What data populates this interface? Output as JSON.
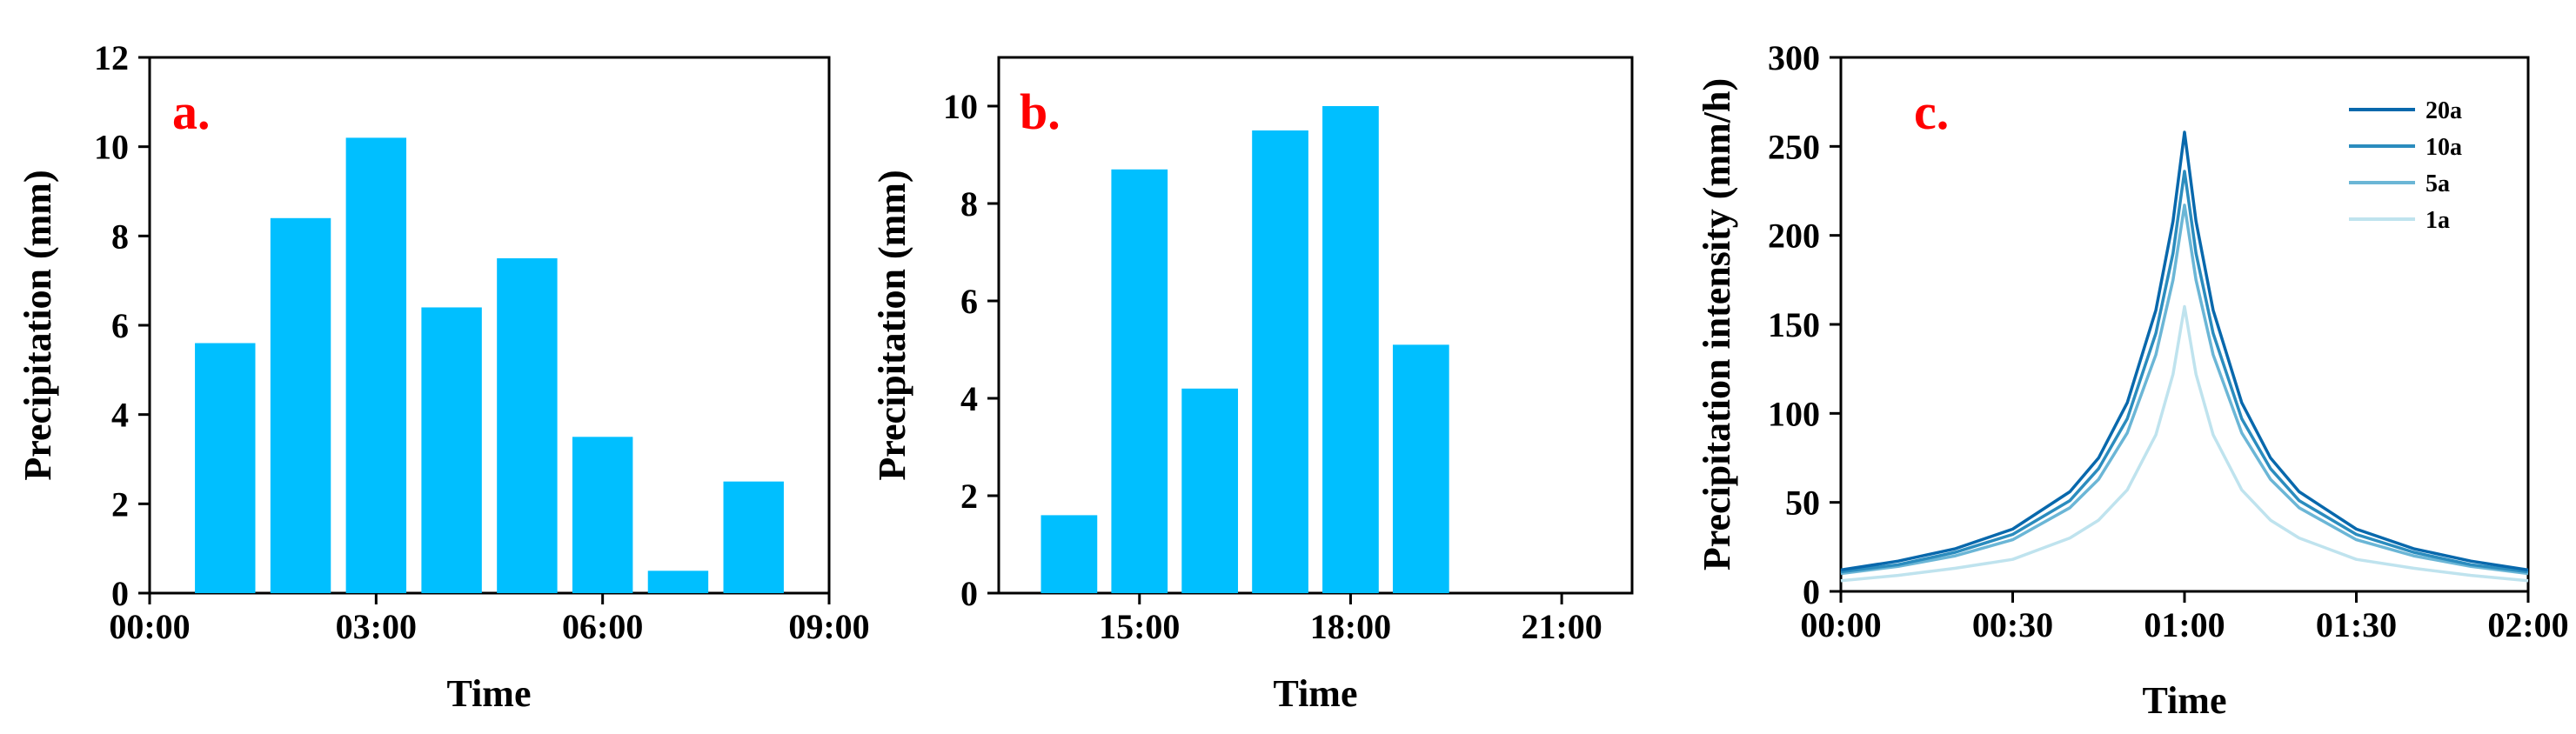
{
  "colors": {
    "bar": "#00bfff",
    "panel_label": "#ff0000",
    "axis": "#000000"
  },
  "chart_data": [
    {
      "type": "bar",
      "panel_label": "a.",
      "xlabel": "Time",
      "ylabel": "Precipitation (mm)",
      "x_unit": "hours",
      "xlim": [
        0,
        9
      ],
      "ylim": [
        0,
        12
      ],
      "x_ticks": [
        0,
        3,
        6,
        9
      ],
      "x_tick_labels": [
        "00:00",
        "03:00",
        "06:00",
        "09:00"
      ],
      "y_ticks": [
        0,
        2,
        4,
        6,
        8,
        10,
        12
      ],
      "y_tick_labels": [
        "0",
        "2",
        "4",
        "6",
        "8",
        "10",
        "12"
      ],
      "bar_width": 0.8,
      "x": [
        1,
        2,
        3,
        4,
        5,
        6,
        7,
        8
      ],
      "values": [
        5.6,
        8.4,
        10.2,
        6.4,
        7.5,
        3.5,
        0.5,
        2.5
      ]
    },
    {
      "type": "bar",
      "panel_label": "b.",
      "xlabel": "Time",
      "ylabel": "Precipitation (mm)",
      "x_unit": "hours",
      "xlim": [
        13,
        22
      ],
      "ylim": [
        0,
        11
      ],
      "x_ticks": [
        15,
        18,
        21
      ],
      "x_tick_labels": [
        "15:00",
        "18:00",
        "21:00"
      ],
      "y_ticks": [
        0,
        2,
        4,
        6,
        8,
        10
      ],
      "y_tick_labels": [
        "0",
        "2",
        "4",
        "6",
        "8",
        "10"
      ],
      "bar_width": 0.8,
      "x": [
        14,
        15,
        16,
        17,
        18,
        19
      ],
      "values": [
        1.6,
        8.7,
        4.2,
        9.5,
        10.0,
        5.1
      ]
    },
    {
      "type": "line",
      "panel_label": "c.",
      "xlabel": "Time",
      "ylabel": "Precipitation intensity (mm/h)",
      "x_unit": "minutes",
      "xlim": [
        0,
        120
      ],
      "ylim": [
        0,
        300
      ],
      "x_ticks": [
        0,
        30,
        60,
        90,
        120
      ],
      "x_tick_labels": [
        "00:00",
        "00:30",
        "01:00",
        "01:30",
        "02:00"
      ],
      "y_ticks": [
        0,
        50,
        100,
        150,
        200,
        250,
        300
      ],
      "y_tick_labels": [
        "0",
        "50",
        "100",
        "150",
        "200",
        "250",
        "300"
      ],
      "legend_position": "top-right",
      "x": [
        0,
        10,
        20,
        30,
        40,
        45,
        50,
        55,
        58,
        60,
        62,
        65,
        70,
        75,
        80,
        90,
        100,
        110,
        120
      ],
      "series": [
        {
          "name": "20a",
          "color": "#0868ac",
          "values": [
            12,
            17,
            24,
            35,
            56,
            75,
            106,
            158,
            208,
            258,
            208,
            158,
            106,
            75,
            56,
            35,
            24,
            17,
            12
          ]
        },
        {
          "name": "10a",
          "color": "#2b8cbe",
          "values": [
            11,
            15,
            22,
            32,
            51,
            69,
            97,
            145,
            190,
            236,
            190,
            145,
            97,
            69,
            51,
            32,
            22,
            15,
            11
          ]
        },
        {
          "name": "5a",
          "color": "#6bb6d6",
          "values": [
            10,
            14,
            20,
            29,
            47,
            63,
            89,
            133,
            175,
            217,
            175,
            133,
            89,
            63,
            47,
            29,
            20,
            14,
            10
          ]
        },
        {
          "name": "1a",
          "color": "#bfe3ee",
          "values": [
            6,
            9,
            13,
            18,
            30,
            40,
            57,
            88,
            122,
            160,
            122,
            88,
            57,
            40,
            30,
            18,
            13,
            9,
            6
          ]
        }
      ]
    }
  ]
}
